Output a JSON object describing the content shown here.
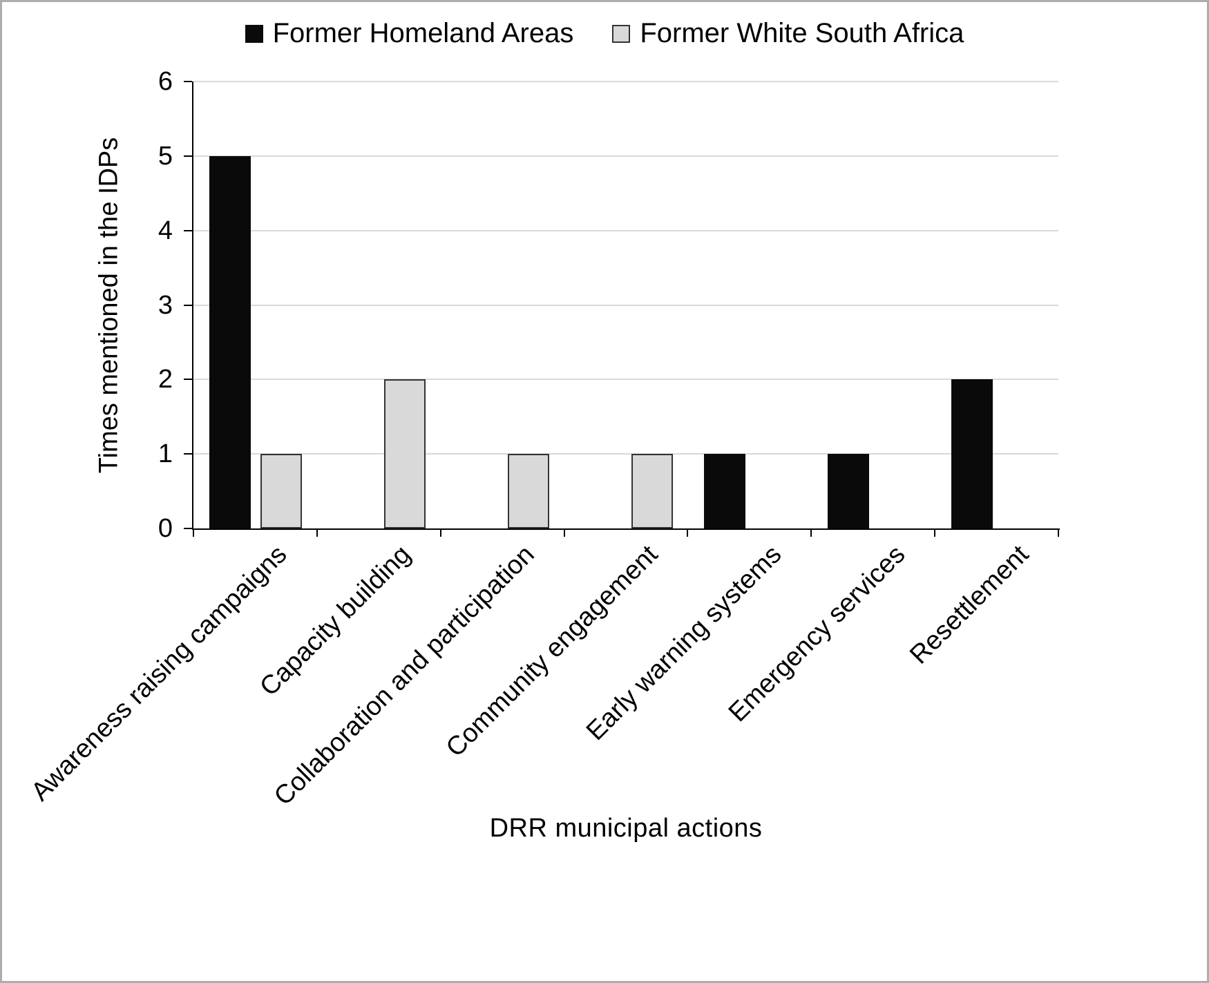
{
  "chart_data": {
    "type": "bar",
    "title": "",
    "xlabel": "DRR municipal actions",
    "ylabel": "Times mentioned in the IDPs",
    "categories": [
      "Awareness raising campaigns",
      "Capacity building",
      "Collaboration and participation",
      "Community engagement",
      "Early warning systems",
      "Emergency services",
      "Resettlement"
    ],
    "series": [
      {
        "name": "Former Homeland Areas",
        "color": "#0a0a0a",
        "border": "#0a0a0a",
        "values": [
          5,
          0,
          0,
          0,
          1,
          1,
          2
        ]
      },
      {
        "name": "Former White South Africa",
        "color": "#d9d9d9",
        "border": "#333333",
        "values": [
          1,
          2,
          1,
          1,
          0,
          0,
          0
        ]
      }
    ],
    "ylim": [
      0,
      6
    ],
    "yticks": [
      0,
      1,
      2,
      3,
      4,
      5,
      6
    ],
    "grid": true,
    "legend_position": "top-center",
    "background": "#ffffff"
  }
}
